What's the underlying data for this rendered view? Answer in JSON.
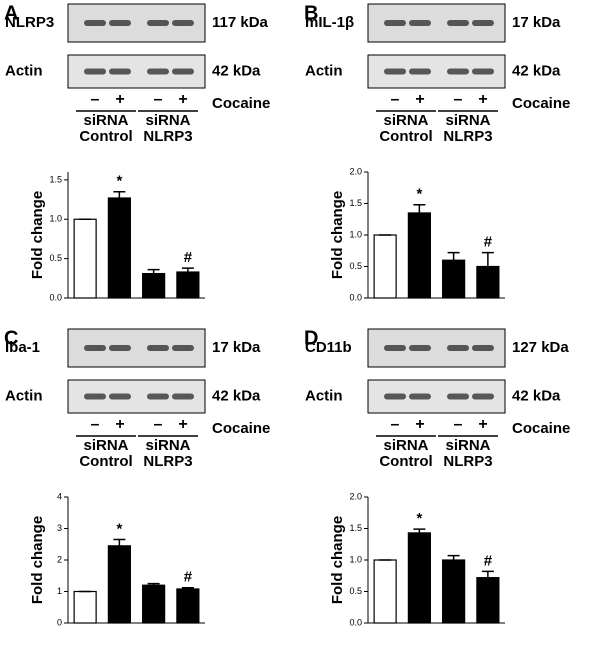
{
  "panels": [
    {
      "letter": "A",
      "blots": [
        {
          "label": "NLRP3",
          "kda": "117 kDa"
        },
        {
          "label": "Actin",
          "kda": "42 kDa"
        }
      ],
      "signs": [
        "–",
        "+",
        "–",
        "+"
      ],
      "treatment": "Cocaine",
      "groups": [
        {
          "line1": "siRNA",
          "line2": "Control"
        },
        {
          "line1": "siRNA",
          "line2": "NLRP3"
        }
      ]
    },
    {
      "letter": "B",
      "blots": [
        {
          "label": "mIL-1β",
          "kda": "17 kDa"
        },
        {
          "label": "Actin",
          "kda": "42 kDa"
        }
      ],
      "signs": [
        "–",
        "+",
        "–",
        "+"
      ],
      "treatment": "Cocaine",
      "groups": [
        {
          "line1": "siRNA",
          "line2": "Control"
        },
        {
          "line1": "siRNA",
          "line2": "NLRP3"
        }
      ]
    },
    {
      "letter": "C",
      "blots": [
        {
          "label": "Iba-1",
          "kda": "17 kDa"
        },
        {
          "label": "Actin",
          "kda": "42 kDa"
        }
      ],
      "signs": [
        "–",
        "+",
        "–",
        "+"
      ],
      "treatment": "Cocaine",
      "groups": [
        {
          "line1": "siRNA",
          "line2": "Control"
        },
        {
          "line1": "siRNA",
          "line2": "NLRP3"
        }
      ]
    },
    {
      "letter": "D",
      "blots": [
        {
          "label": "CD11b",
          "kda": "127 kDa"
        },
        {
          "label": "Actin",
          "kda": "42 kDa"
        }
      ],
      "signs": [
        "–",
        "+",
        "–",
        "+"
      ],
      "treatment": "Cocaine",
      "groups": [
        {
          "line1": "siRNA",
          "line2": "Control"
        },
        {
          "line1": "siRNA",
          "line2": "NLRP3"
        }
      ]
    }
  ],
  "chart_data": [
    {
      "type": "bar",
      "y_label": "Fold change",
      "categories": [
        null,
        null,
        null,
        null
      ],
      "values": [
        1.0,
        1.27,
        0.31,
        0.33
      ],
      "errors": [
        0.0,
        0.08,
        0.05,
        0.05
      ],
      "colors": [
        "#ffffff",
        "#000000",
        "#000000",
        "#000000"
      ],
      "markers": [
        null,
        "*",
        null,
        "#"
      ],
      "ylim": [
        0,
        1.6
      ],
      "yticks": [
        {
          "value": 0,
          "label": "0.0"
        },
        {
          "value": 0.5,
          "label": "0.5"
        },
        {
          "value": 1,
          "label": "1.0"
        },
        {
          "value": 1.5,
          "label": "1.5"
        }
      ]
    },
    {
      "type": "bar",
      "y_label": "Fold change",
      "categories": [
        null,
        null,
        null,
        null
      ],
      "values": [
        1.0,
        1.35,
        0.6,
        0.5
      ],
      "errors": [
        0.0,
        0.13,
        0.12,
        0.22
      ],
      "colors": [
        "#ffffff",
        "#000000",
        "#000000",
        "#000000"
      ],
      "markers": [
        null,
        "*",
        null,
        "#"
      ],
      "ylim": [
        0,
        2
      ],
      "yticks": [
        {
          "value": 0,
          "label": "0.0"
        },
        {
          "value": 0.5,
          "label": "0.5"
        },
        {
          "value": 1,
          "label": "1.0"
        },
        {
          "value": 1.5,
          "label": "1.5"
        },
        {
          "value": 2,
          "label": "2.0"
        }
      ]
    },
    {
      "type": "bar",
      "y_label": "Fold change",
      "categories": [
        null,
        null,
        null,
        null
      ],
      "values": [
        1.0,
        2.45,
        1.2,
        1.08
      ],
      "errors": [
        0.0,
        0.2,
        0.05,
        0.04
      ],
      "colors": [
        "#ffffff",
        "#000000",
        "#000000",
        "#000000"
      ],
      "markers": [
        null,
        "*",
        null,
        "#"
      ],
      "ylim": [
        0,
        4
      ],
      "yticks": [
        0,
        1,
        2,
        3,
        4
      ]
    },
    {
      "type": "bar",
      "y_label": "Fold change",
      "categories": [
        null,
        null,
        null,
        null
      ],
      "values": [
        1.0,
        1.43,
        1.0,
        0.72
      ],
      "errors": [
        0.0,
        0.06,
        0.07,
        0.1
      ],
      "colors": [
        "#ffffff",
        "#000000",
        "#000000",
        "#000000"
      ],
      "markers": [
        null,
        "*",
        null,
        "#"
      ],
      "ylim": [
        0,
        2
      ],
      "yticks": [
        {
          "value": 0,
          "label": "0.0"
        },
        {
          "value": 0.5,
          "label": "0.5"
        },
        {
          "value": 1,
          "label": "1.0"
        },
        {
          "value": 1.5,
          "label": "1.5"
        },
        {
          "value": 2,
          "label": "2.0"
        }
      ]
    }
  ]
}
